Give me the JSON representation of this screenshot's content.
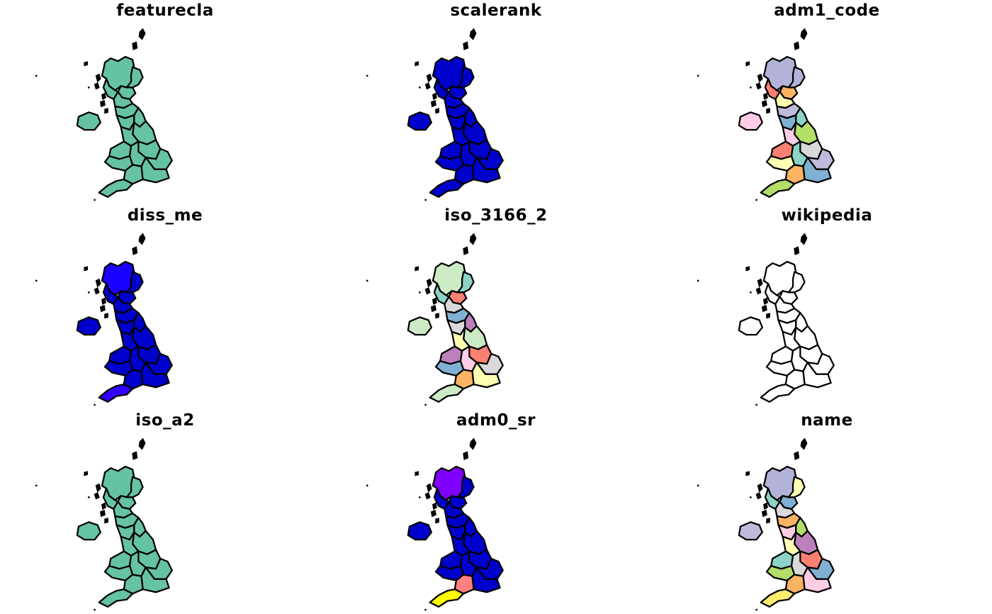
{
  "panels": [
    {
      "title": "featurecla",
      "fills": [
        "#66c2a5",
        "#66c2a5",
        "#66c2a5",
        "#66c2a5",
        "#66c2a5",
        "#66c2a5",
        "#66c2a5",
        "#66c2a5",
        "#66c2a5",
        "#66c2a5",
        "#66c2a5",
        "#66c2a5",
        "#66c2a5",
        "#66c2a5",
        "#66c2a5",
        "#66c2a5",
        "#66c2a5",
        "#66c2a5",
        "#66c2a5"
      ]
    },
    {
      "title": "scalerank",
      "fills": [
        "#0000cc",
        "#0000cc",
        "#0000cc",
        "#0000cc",
        "#0000cc",
        "#0000cc",
        "#0000cc",
        "#0000cc",
        "#0000cc",
        "#0000cc",
        "#0000cc",
        "#0000cc",
        "#0000cc",
        "#0000cc",
        "#0000cc",
        "#0000cc",
        "#0000cc",
        "#0000cc",
        "#0000cc"
      ]
    },
    {
      "title": "adm1_code",
      "fills": [
        "#b3b3d9",
        "#b3b3d9",
        "#fdb462",
        "#fb8072",
        "#ffffb3",
        "#bebada",
        "#8dd3c7",
        "#80b1d3",
        "#b3de69",
        "#fccde5",
        "#d9d9d9",
        "#fb8072",
        "#8dd3c7",
        "#ffffb3",
        "#bebada",
        "#80b1d3",
        "#fdb462",
        "#b3de69",
        "#fccde5"
      ]
    },
    {
      "title": "diss_me",
      "fills": [
        "#1a00ff",
        "#0000cc",
        "#0000cc",
        "#0000cc",
        "#0000cc",
        "#0000cc",
        "#0000cc",
        "#0000cc",
        "#0000cc",
        "#0000cc",
        "#0000cc",
        "#0000cc",
        "#0000cc",
        "#0000cc",
        "#0000cc",
        "#0000cc",
        "#0000cc",
        "#3300ff",
        "#0000cc"
      ]
    },
    {
      "title": "iso_3166_2",
      "fills": [
        "#ccebc5",
        "#8dd3c7",
        "#fb8072",
        "#8dd3c7",
        "#d9d9d9",
        "#80b1d3",
        "#bc80bd",
        "#d9d9d9",
        "#ccebc5",
        "#ffffb3",
        "#fb8072",
        "#bc80bd",
        "#fccde5",
        "#80b1d3",
        "#d9d9d9",
        "#ffffb3",
        "#fdb462",
        "#ccebc5",
        "#ccebc5"
      ]
    },
    {
      "title": "wikipedia",
      "fills": [
        "#ffffff",
        "#ffffff",
        "#ffffff",
        "#ffffff",
        "#ffffff",
        "#ffffff",
        "#ffffff",
        "#ffffff",
        "#ffffff",
        "#ffffff",
        "#ffffff",
        "#ffffff",
        "#ffffff",
        "#ffffff",
        "#ffffff",
        "#ffffff",
        "#ffffff",
        "#ffffff",
        "#ffffff"
      ]
    },
    {
      "title": "iso_a2",
      "fills": [
        "#66c2a5",
        "#66c2a5",
        "#66c2a5",
        "#66c2a5",
        "#66c2a5",
        "#66c2a5",
        "#66c2a5",
        "#66c2a5",
        "#66c2a5",
        "#66c2a5",
        "#66c2a5",
        "#66c2a5",
        "#66c2a5",
        "#66c2a5",
        "#66c2a5",
        "#66c2a5",
        "#66c2a5",
        "#66c2a5",
        "#66c2a5"
      ]
    },
    {
      "title": "adm0_sr",
      "fills": [
        "#8000ff",
        "#0000cc",
        "#0000cc",
        "#0000cc",
        "#0000cc",
        "#0000cc",
        "#0000cc",
        "#0000cc",
        "#0000cc",
        "#0000cc",
        "#0000cc",
        "#0000cc",
        "#0000cc",
        "#0000cc",
        "#0000cc",
        "#0000cc",
        "#ff8080",
        "#ffff00",
        "#0000cc"
      ]
    },
    {
      "title": "name",
      "fills": [
        "#b3b3d9",
        "#ffffb3",
        "#80b1d3",
        "#8dd3c7",
        "#d9d9d9",
        "#fdb462",
        "#b3de69",
        "#fccde5",
        "#bc80bd",
        "#ffffb3",
        "#fb8072",
        "#8dd3c7",
        "#d9d9d9",
        "#b3de69",
        "#80b1d3",
        "#fccde5",
        "#fdb462",
        "#ffed6f",
        "#bebada"
      ]
    }
  ]
}
